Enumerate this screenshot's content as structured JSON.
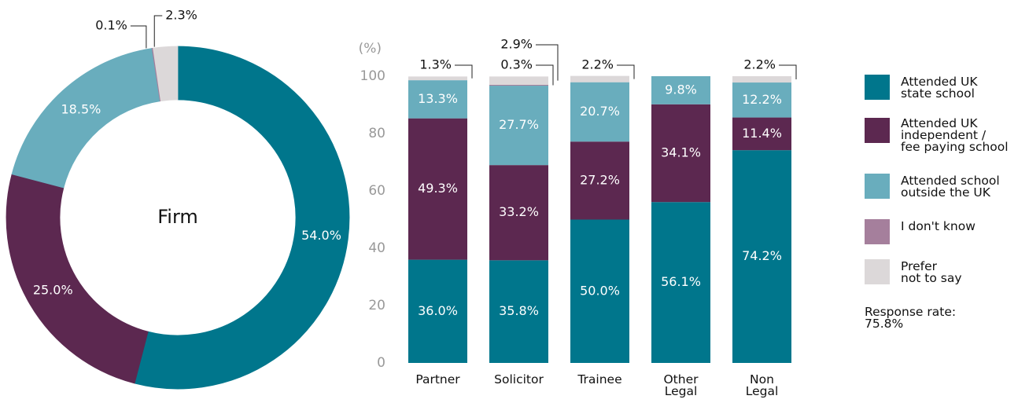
{
  "chart_data": [
    {
      "type": "pie",
      "title": "Firm",
      "values": [
        54.0,
        25.0,
        18.5,
        0.1,
        2.3
      ],
      "value_labels": [
        "54.0%",
        "25.0%",
        "18.5%",
        "0.1%",
        "2.3%"
      ],
      "colors": [
        "#00768c",
        "#5c2850",
        "#69adbd",
        "#a57f9c",
        "#dcd8d9"
      ]
    },
    {
      "type": "stacked_bar",
      "ylabel": "(%)",
      "categories": [
        "Partner",
        "Solicitor",
        "Trainee",
        "Other\nLegal",
        "Non\nLegal"
      ],
      "ylim": [
        0,
        100
      ],
      "yticks": [
        0,
        20,
        40,
        60,
        80,
        100
      ],
      "series": [
        {
          "name": "Attended UK\nstate school",
          "color": "#00768c",
          "values": [
            36.0,
            35.8,
            50.0,
            56.1,
            74.2
          ],
          "value_labels": [
            "36.0%",
            "35.8%",
            "50.0%",
            "56.1%",
            "74.2%"
          ]
        },
        {
          "name": "Attended UK\nindependent /\nfee paying school",
          "color": "#5c2850",
          "values": [
            49.3,
            33.2,
            27.2,
            34.1,
            11.4
          ],
          "value_labels": [
            "49.3%",
            "33.2%",
            "27.2%",
            "34.1%",
            "11.4%"
          ]
        },
        {
          "name": "Attended school\noutside the UK",
          "color": "#69adbd",
          "values": [
            13.3,
            27.7,
            20.7,
            9.8,
            12.2
          ],
          "value_labels": [
            "13.3%",
            "27.7%",
            "20.7%",
            "9.8%",
            "12.2%"
          ]
        },
        {
          "name": "I don't know",
          "color": "#a57f9c",
          "values": [
            null,
            0.3,
            null,
            null,
            null
          ],
          "value_labels": [
            null,
            "0.3%",
            null,
            null,
            null
          ]
        },
        {
          "name": "Prefer\nnot to say",
          "color": "#dcd8d9",
          "values": [
            1.3,
            2.9,
            2.2,
            null,
            2.2
          ],
          "value_labels": [
            "1.3%",
            "2.9%",
            "2.2%",
            null,
            "2.2%"
          ]
        }
      ],
      "annotation": "Response rate:\n75.8%"
    }
  ]
}
